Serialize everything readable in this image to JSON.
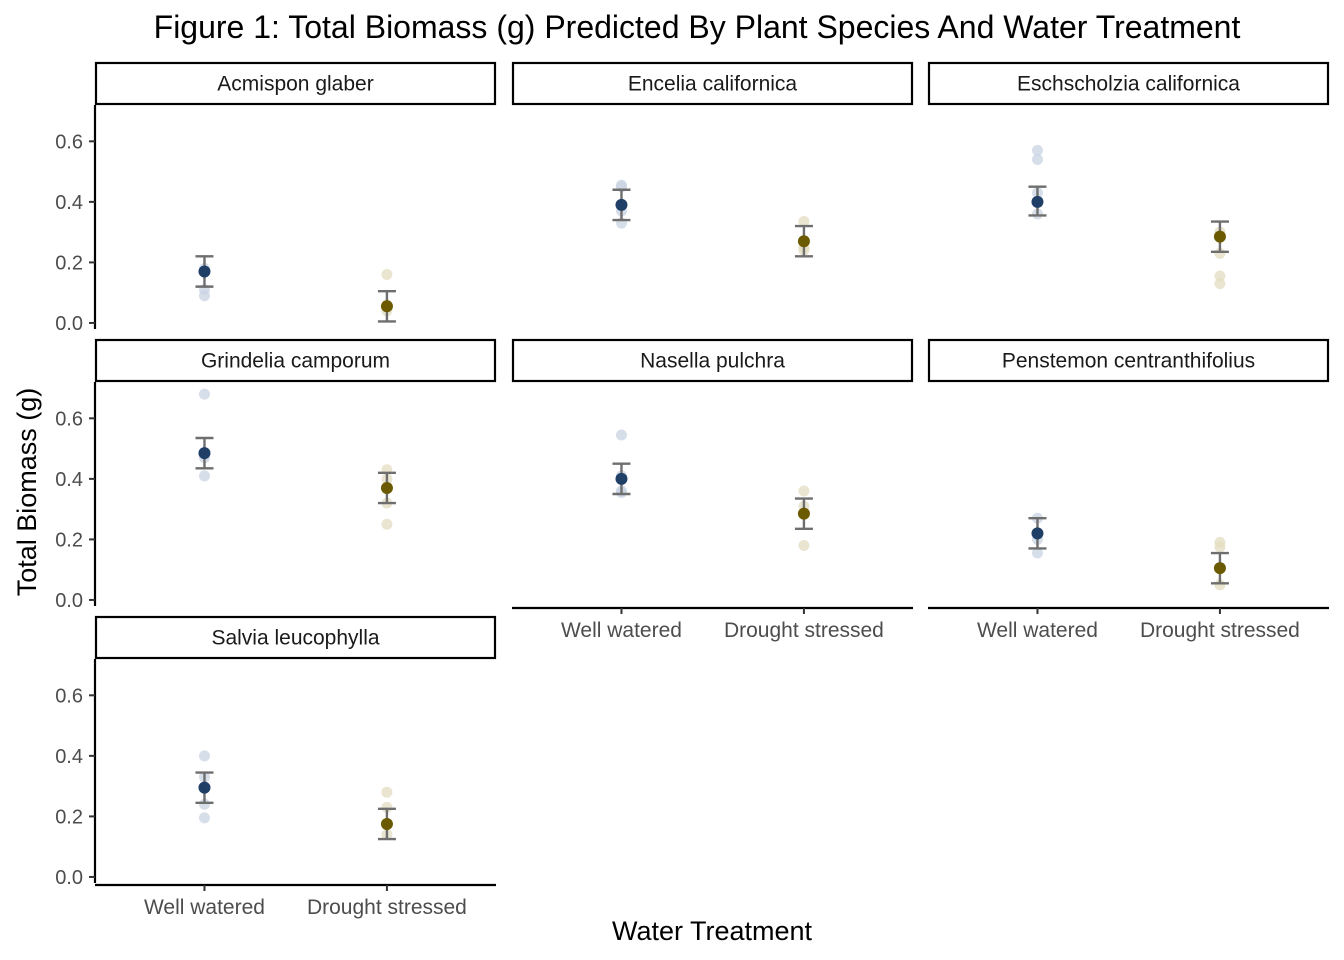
{
  "chart_data": {
    "type": "scatter",
    "title": "Figure 1: Total Biomass (g) Predicted By Plant Species And Water Treatment",
    "xlabel": "Water Treatment",
    "ylabel": "Total Biomass (g)",
    "categories": [
      "Well watered",
      "Drought stressed"
    ],
    "ylim": [
      -0.02,
      0.72
    ],
    "yticks": [
      "0.0",
      "0.2",
      "0.4",
      "0.6"
    ],
    "ytick_values": [
      0.0,
      0.2,
      0.4,
      0.6
    ],
    "colors": {
      "Well watered": "#1f3f66",
      "Drought stressed": "#6b5a00",
      "errorbar": "#6e6e6e",
      "raw_well": "#c8d3e3",
      "raw_drought": "#e3dcc0"
    },
    "panels": [
      {
        "species": "Acmispon glaber",
        "predicted": [
          {
            "treatment": "Well watered",
            "mean": 0.17,
            "lower": 0.12,
            "upper": 0.22
          },
          {
            "treatment": "Drought stressed",
            "mean": 0.055,
            "lower": 0.005,
            "upper": 0.105
          }
        ],
        "raw": [
          {
            "treatment": "Well watered",
            "values": [
              0.09,
              0.11,
              0.18
            ]
          },
          {
            "treatment": "Drought stressed",
            "values": [
              0.16,
              0.06,
              0.04
            ]
          }
        ]
      },
      {
        "species": "Encelia californica",
        "predicted": [
          {
            "treatment": "Well watered",
            "mean": 0.39,
            "lower": 0.34,
            "upper": 0.44
          },
          {
            "treatment": "Drought stressed",
            "mean": 0.27,
            "lower": 0.22,
            "upper": 0.32
          }
        ],
        "raw": [
          {
            "treatment": "Well watered",
            "values": [
              0.45,
              0.455,
              0.33,
              0.37
            ]
          },
          {
            "treatment": "Drought stressed",
            "values": [
              0.335,
              0.25,
              0.24
            ]
          }
        ]
      },
      {
        "species": "Eschscholzia californica",
        "predicted": [
          {
            "treatment": "Well watered",
            "mean": 0.4,
            "lower": 0.355,
            "upper": 0.45
          },
          {
            "treatment": "Drought stressed",
            "mean": 0.285,
            "lower": 0.235,
            "upper": 0.335
          }
        ],
        "raw": [
          {
            "treatment": "Well watered",
            "values": [
              0.57,
              0.54,
              0.43,
              0.36
            ]
          },
          {
            "treatment": "Drought stressed",
            "values": [
              0.13,
              0.155,
              0.23,
              0.3
            ]
          }
        ]
      },
      {
        "species": "Grindelia camporum",
        "predicted": [
          {
            "treatment": "Well watered",
            "mean": 0.485,
            "lower": 0.435,
            "upper": 0.535
          },
          {
            "treatment": "Drought stressed",
            "mean": 0.37,
            "lower": 0.32,
            "upper": 0.42
          }
        ],
        "raw": [
          {
            "treatment": "Well watered",
            "values": [
              0.68,
              0.41,
              0.47
            ]
          },
          {
            "treatment": "Drought stressed",
            "values": [
              0.43,
              0.25,
              0.32,
              0.4
            ]
          }
        ]
      },
      {
        "species": "Nasella pulchra",
        "predicted": [
          {
            "treatment": "Well watered",
            "mean": 0.4,
            "lower": 0.35,
            "upper": 0.45
          },
          {
            "treatment": "Drought stressed",
            "mean": 0.285,
            "lower": 0.235,
            "upper": 0.335
          }
        ],
        "raw": [
          {
            "treatment": "Well watered",
            "values": [
              0.545,
              0.36,
              0.355,
              0.41
            ]
          },
          {
            "treatment": "Drought stressed",
            "values": [
              0.36,
              0.18,
              0.31
            ]
          }
        ]
      },
      {
        "species": "Penstemon centranthifolius",
        "predicted": [
          {
            "treatment": "Well watered",
            "mean": 0.22,
            "lower": 0.17,
            "upper": 0.27
          },
          {
            "treatment": "Drought stressed",
            "mean": 0.105,
            "lower": 0.055,
            "upper": 0.155
          }
        ],
        "raw": [
          {
            "treatment": "Well watered",
            "values": [
              0.155,
              0.27,
              0.2
            ]
          },
          {
            "treatment": "Drought stressed",
            "values": [
              0.19,
              0.175,
              0.05
            ]
          }
        ]
      },
      {
        "species": "Salvia leucophylla",
        "predicted": [
          {
            "treatment": "Well watered",
            "mean": 0.295,
            "lower": 0.245,
            "upper": 0.345
          },
          {
            "treatment": "Drought stressed",
            "mean": 0.175,
            "lower": 0.125,
            "upper": 0.225
          }
        ],
        "raw": [
          {
            "treatment": "Well watered",
            "values": [
              0.4,
              0.195,
              0.24,
              0.33
            ]
          },
          {
            "treatment": "Drought stressed",
            "values": [
              0.28,
              0.23,
              0.14
            ]
          }
        ]
      }
    ],
    "grid": false,
    "legend": "none"
  }
}
